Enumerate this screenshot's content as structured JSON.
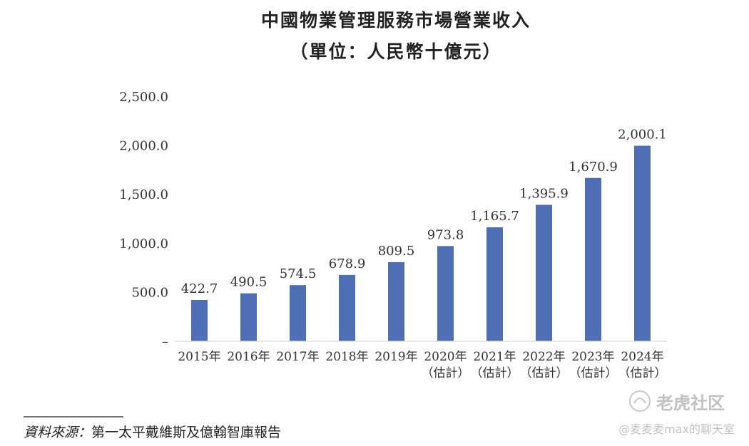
{
  "chart_data": {
    "type": "bar",
    "title": "中國物業管理服務市場營業收入",
    "subtitle": "（單位：人民幣十億元）",
    "categories": [
      [
        "2015年",
        ""
      ],
      [
        "2016年",
        ""
      ],
      [
        "2017年",
        ""
      ],
      [
        "2018年",
        ""
      ],
      [
        "2019年",
        ""
      ],
      [
        "2020年",
        "（估計）"
      ],
      [
        "2021年",
        "（估計）"
      ],
      [
        "2022年",
        "（估計）"
      ],
      [
        "2023年",
        "（估計）"
      ],
      [
        "2024年",
        "（估計）"
      ]
    ],
    "values": [
      422.7,
      490.5,
      574.5,
      678.9,
      809.5,
      973.8,
      1165.7,
      1395.9,
      1670.9,
      2000.1
    ],
    "value_labels": [
      "422.7",
      "490.5",
      "574.5",
      "678.9",
      "809.5",
      "973.8",
      "1,165.7",
      "1,395.9",
      "1,670.9",
      "2,000.1"
    ],
    "y_ticks": [
      0,
      500,
      1000,
      1500,
      2000,
      2500
    ],
    "y_tick_labels": [
      "–",
      "500.0",
      "1,000.0",
      "1,500.0",
      "2,000.0",
      "2,500.0"
    ],
    "ylim": [
      0,
      2500
    ],
    "grid": false,
    "bar_color": "#4e6fb5",
    "xlabel": "",
    "ylabel": ""
  },
  "source": {
    "label": "資料來源：",
    "text": "第一太平戴維斯及億翰智庫報告"
  },
  "watermark": {
    "brand": "老虎社区",
    "credit": "@麦麦麦max的聊天室"
  }
}
